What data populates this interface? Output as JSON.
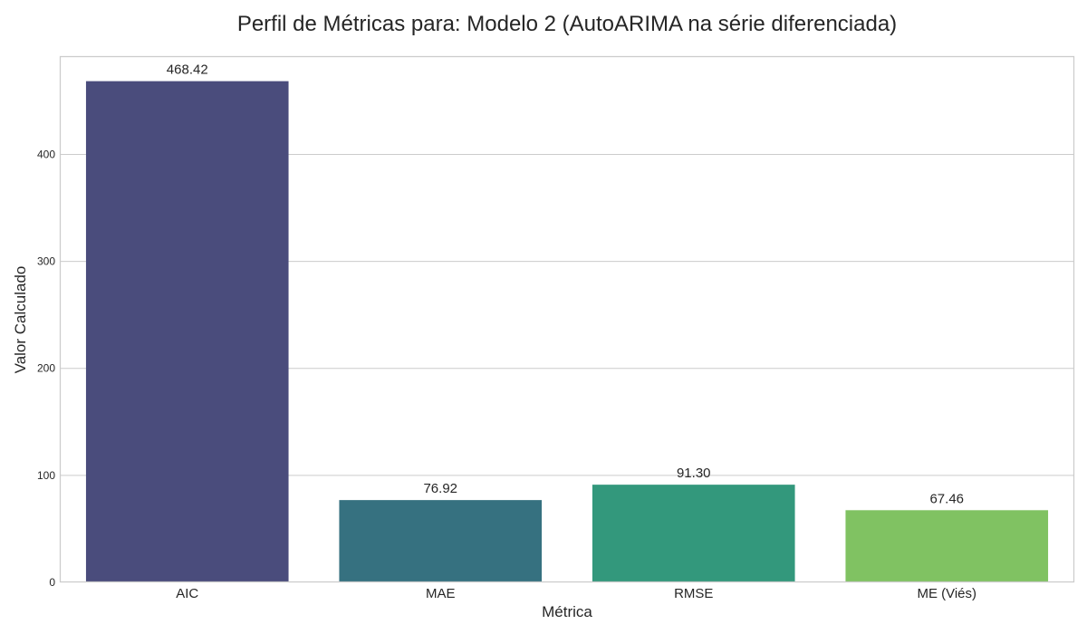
{
  "chart_data": {
    "type": "bar",
    "title": "Perfil de Métricas para: Modelo 2 (AutoARIMA na série diferenciada)",
    "xlabel": "Métrica",
    "ylabel": "Valor Calculado",
    "categories": [
      "AIC",
      "MAE",
      "RMSE",
      "ME (Viés)"
    ],
    "values": [
      468.42,
      76.92,
      91.3,
      67.46
    ],
    "value_labels": [
      "468.42",
      "76.92",
      "91.30",
      "67.46"
    ],
    "colors": [
      "#4a4c7c",
      "#367180",
      "#33987c",
      "#80c262"
    ],
    "ylim": [
      0,
      491.8
    ],
    "yticks": [
      0,
      100,
      200,
      300,
      400
    ],
    "ytick_labels": [
      "0",
      "100",
      "200",
      "300",
      "400"
    ],
    "grid": "horizontal",
    "legend": "none"
  }
}
